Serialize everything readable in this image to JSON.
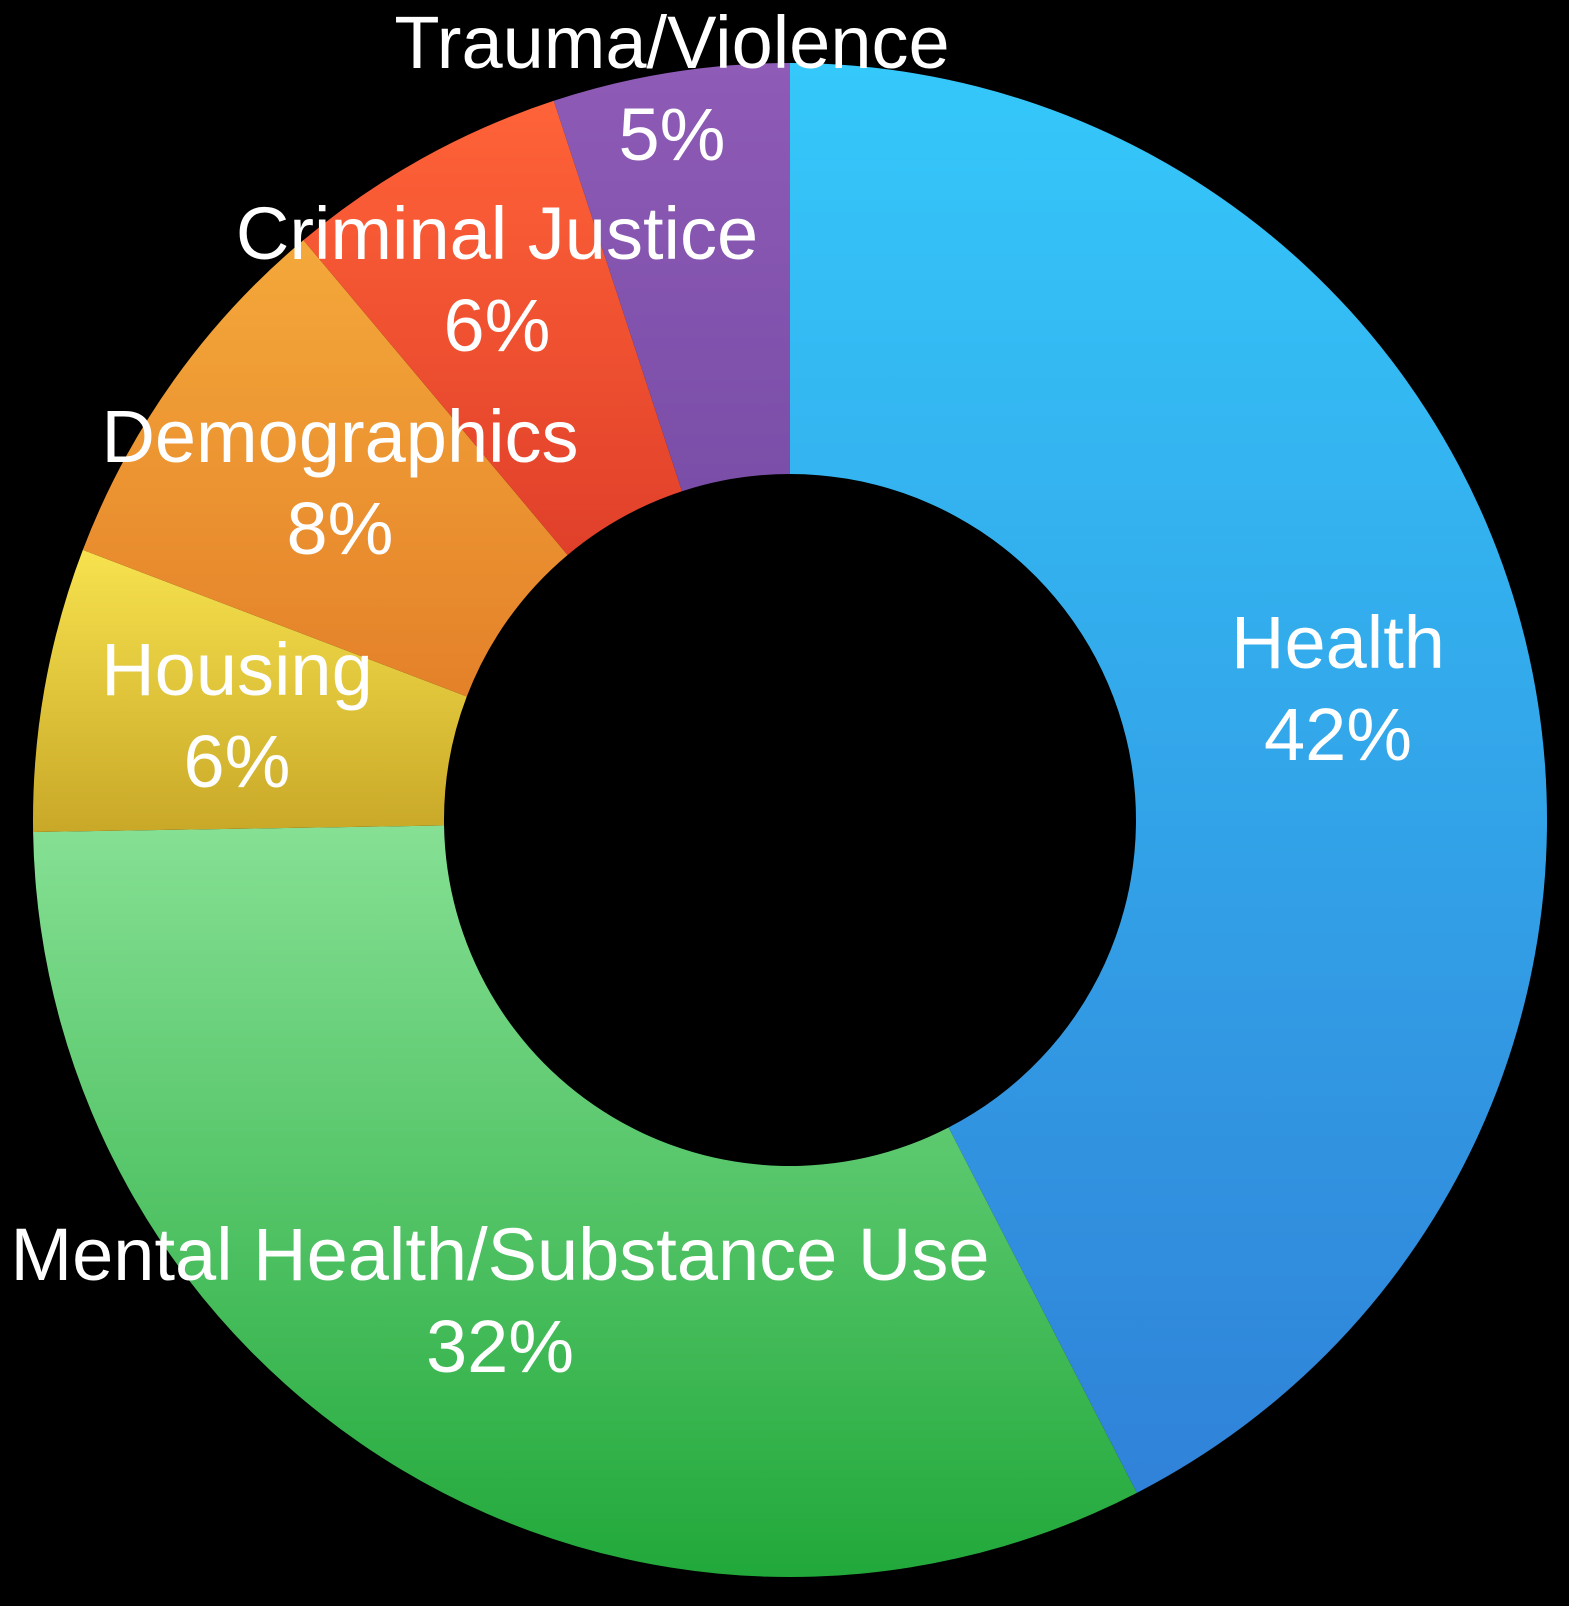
{
  "chart_data": {
    "type": "pie",
    "variant": "donut",
    "title": "",
    "legend": "none",
    "data_labels": "category and percent",
    "slices": [
      {
        "label": "Health",
        "value": 42,
        "value_label": "42%",
        "color_top": "#35C8FA",
        "color_bottom": "#3082D8"
      },
      {
        "label": "Mental Health/Substance Use",
        "value": 32,
        "value_label": "32%",
        "color_top": "#86E094",
        "color_bottom": "#21A83A"
      },
      {
        "label": "Housing",
        "value": 6,
        "value_label": "6%",
        "color_top": "#F7E24E",
        "color_bottom": "#C9A828"
      },
      {
        "label": "Demographics",
        "value": 8,
        "value_label": "8%",
        "color_top": "#F4A83A",
        "color_bottom": "#E4812A"
      },
      {
        "label": "Criminal Justice",
        "value": 6,
        "value_label": "6%",
        "color_top": "#FF6338",
        "color_bottom": "#E0402A"
      },
      {
        "label": "Trauma/Violence",
        "value": 5,
        "value_label": "5%",
        "color_top": "#8E5BB6",
        "color_bottom": "#7A4EA8"
      }
    ]
  }
}
